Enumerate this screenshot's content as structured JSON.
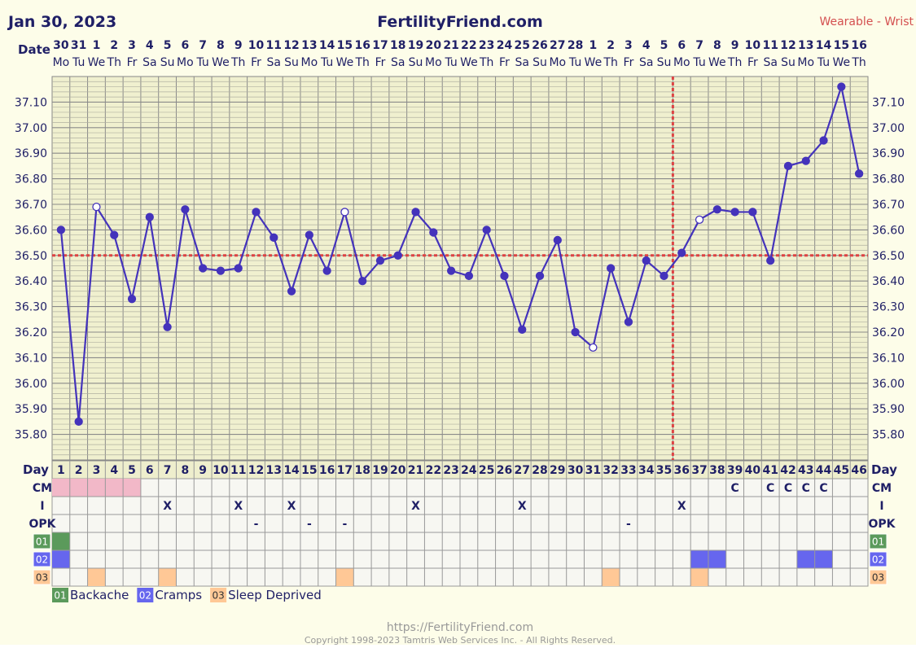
{
  "header": {
    "date": "Jan 30, 2023",
    "site": "FertilityFriend.com",
    "device": "Wearable - Wrist"
  },
  "labels": {
    "date": "Date",
    "day": "Day",
    "cm": "CM",
    "i": "I",
    "opk": "OPK"
  },
  "dates": [
    "30",
    "31",
    "1",
    "2",
    "3",
    "4",
    "5",
    "6",
    "7",
    "8",
    "9",
    "10",
    "11",
    "12",
    "13",
    "14",
    "15",
    "16",
    "17",
    "18",
    "19",
    "20",
    "21",
    "22",
    "23",
    "24",
    "25",
    "26",
    "27",
    "28",
    "1",
    "2",
    "3",
    "4",
    "5",
    "6",
    "7",
    "8",
    "9",
    "10",
    "11",
    "12",
    "13",
    "14",
    "15",
    "16"
  ],
  "weekdays": [
    "Mo",
    "Tu",
    "We",
    "Th",
    "Fr",
    "Sa",
    "Su",
    "Mo",
    "Tu",
    "We",
    "Th",
    "Fr",
    "Sa",
    "Su",
    "Mo",
    "Tu",
    "We",
    "Th",
    "Fr",
    "Sa",
    "Su",
    "Mo",
    "Tu",
    "We",
    "Th",
    "Fr",
    "Sa",
    "Su",
    "Mo",
    "Tu",
    "We",
    "Th",
    "Fr",
    "Sa",
    "Su",
    "Mo",
    "Tu",
    "We",
    "Th",
    "Fr",
    "Sa",
    "Su",
    "Mo",
    "Tu",
    "We",
    "Th"
  ],
  "rows": {
    "cm": [
      "",
      "",
      "",
      "",
      "",
      "",
      "",
      "",
      "",
      "",
      "",
      "",
      "",
      "",
      "",
      "",
      "",
      "",
      "",
      "",
      "",
      "",
      "",
      "",
      "",
      "",
      "",
      "",
      "",
      "",
      "",
      "",
      "",
      "",
      "",
      "",
      "",
      "",
      "C",
      "",
      "C",
      "C",
      "C",
      "C",
      "",
      ""
    ],
    "cm_color": [
      "#f2b8c8",
      "#f2b8c8",
      "#f2b8c8",
      "#f2b8c8",
      "#f2b8c8",
      "",
      "",
      "",
      "",
      "",
      "",
      "",
      "",
      "",
      "",
      "",
      "",
      "",
      "",
      "",
      "",
      "",
      "",
      "",
      "",
      "",
      "",
      "",
      "",
      "",
      "",
      "",
      "",
      "",
      "",
      "",
      "",
      "",
      "",
      "",
      "",
      "",
      "",
      "",
      "",
      ""
    ],
    "i": [
      "",
      "",
      "",
      "",
      "",
      "",
      "X",
      "",
      "",
      "",
      "X",
      "",
      "",
      "X",
      "",
      "",
      "",
      "",
      "",
      "",
      "X",
      "",
      "",
      "",
      "",
      "",
      "X",
      "",
      "",
      "",
      "",
      "",
      "",
      "",
      "",
      "X",
      "",
      "",
      "",
      "",
      "",
      "",
      "",
      "",
      "",
      ""
    ],
    "opk": [
      "",
      "",
      "",
      "",
      "",
      "",
      "",
      "",
      "",
      "",
      "",
      "-",
      "",
      "",
      "-",
      "",
      "-",
      "",
      "",
      "",
      "",
      "",
      "",
      "",
      "",
      "",
      "",
      "",
      "",
      "",
      "",
      "",
      "-",
      "",
      "",
      "",
      "",
      "",
      "",
      "",
      "",
      "",
      "",
      "",
      "",
      ""
    ],
    "s01": [
      1,
      0,
      0,
      0,
      0,
      0,
      0,
      0,
      0,
      0,
      0,
      0,
      0,
      0,
      0,
      0,
      0,
      0,
      0,
      0,
      0,
      0,
      0,
      0,
      0,
      0,
      0,
      0,
      0,
      0,
      0,
      0,
      0,
      0,
      0,
      0,
      0,
      0,
      0,
      0,
      0,
      0,
      0,
      0,
      0,
      0
    ],
    "s02": [
      1,
      0,
      0,
      0,
      0,
      0,
      0,
      0,
      0,
      0,
      0,
      0,
      0,
      0,
      0,
      0,
      0,
      0,
      0,
      0,
      0,
      0,
      0,
      0,
      0,
      0,
      0,
      0,
      0,
      0,
      0,
      0,
      0,
      0,
      0,
      0,
      1,
      1,
      0,
      0,
      0,
      0,
      1,
      1,
      0,
      0
    ],
    "s03": [
      0,
      0,
      1,
      0,
      0,
      0,
      1,
      0,
      0,
      0,
      0,
      0,
      0,
      0,
      0,
      0,
      1,
      0,
      0,
      0,
      0,
      0,
      0,
      0,
      0,
      0,
      0,
      0,
      0,
      0,
      0,
      1,
      0,
      0,
      0,
      0,
      1,
      0,
      0,
      0,
      0,
      0,
      0,
      0,
      0,
      0
    ]
  },
  "symptoms": [
    {
      "code": "01",
      "label": "Backache",
      "color": "#5b9a5b"
    },
    {
      "code": "02",
      "label": "Cramps",
      "color": "#6666ee"
    },
    {
      "code": "03",
      "label": "Sleep Deprived",
      "color": "#ffc896"
    }
  ],
  "chart_data": {
    "type": "line",
    "x": [
      1,
      2,
      3,
      4,
      5,
      6,
      7,
      8,
      9,
      10,
      11,
      12,
      13,
      14,
      15,
      16,
      17,
      18,
      19,
      20,
      21,
      22,
      23,
      24,
      25,
      26,
      27,
      28,
      29,
      30,
      31,
      32,
      33,
      34,
      35,
      36,
      37,
      38,
      39,
      40,
      41,
      42,
      43,
      44,
      45,
      46
    ],
    "temps": [
      36.6,
      35.85,
      36.69,
      36.58,
      36.33,
      36.65,
      36.22,
      36.68,
      36.45,
      36.44,
      36.45,
      36.67,
      36.57,
      36.36,
      36.58,
      36.44,
      36.67,
      36.4,
      36.48,
      36.5,
      36.67,
      36.59,
      36.44,
      36.42,
      36.6,
      36.42,
      36.21,
      36.42,
      36.56,
      36.2,
      36.14,
      36.45,
      36.24,
      36.48,
      36.42,
      36.51,
      36.64,
      36.68,
      36.67,
      36.67,
      36.48,
      36.85,
      36.87,
      36.95,
      37.16,
      36.82
    ],
    "open_points": [
      3,
      17,
      31,
      37
    ],
    "yticks": [
      "37.10",
      "37.00",
      "36.90",
      "36.80",
      "36.70",
      "36.60",
      "36.50",
      "36.40",
      "36.30",
      "36.20",
      "36.10",
      "36.00",
      "35.90",
      "35.80"
    ],
    "ylim": [
      35.7,
      37.2
    ],
    "coverline": 36.5,
    "ovulation_day": 35,
    "line_color": "#4433bb",
    "reference_color": "#dd4444",
    "grid": true
  },
  "footer": {
    "url": "https://FertilityFriend.com",
    "copyright": "Copyright 1998-2023 Tamtris Web Services Inc. - All Rights Reserved."
  }
}
